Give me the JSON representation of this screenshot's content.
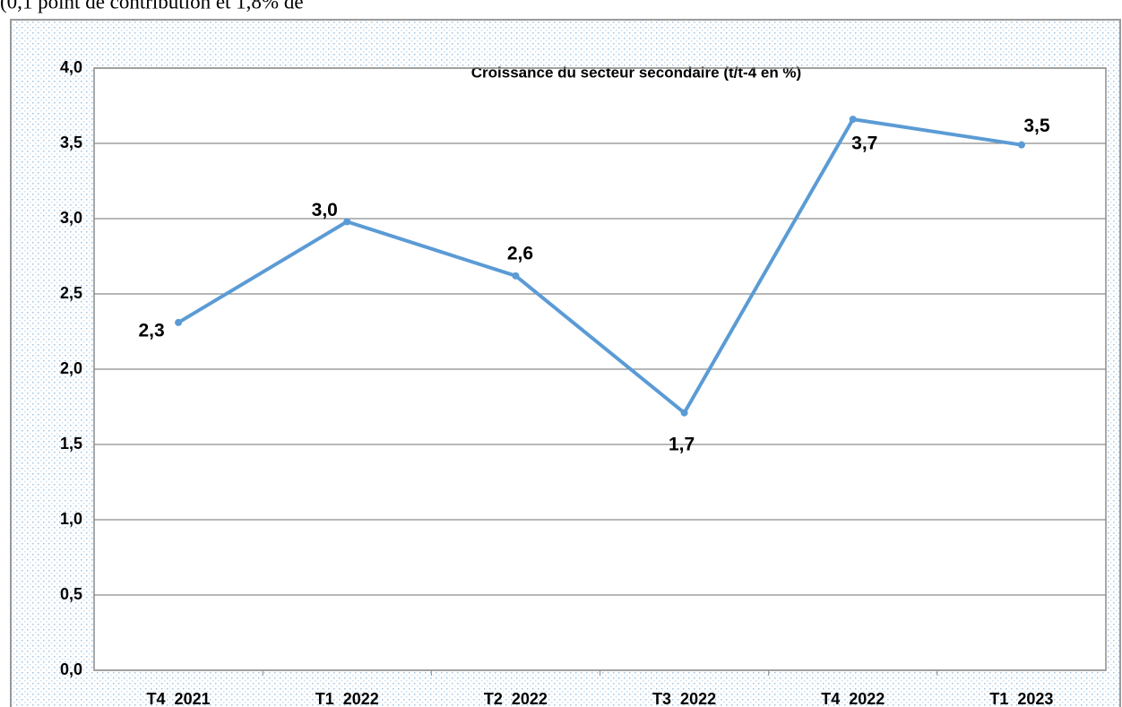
{
  "page_text": "(0,1 point de contribution et 1,8% de",
  "chart_data": {
    "type": "line",
    "title": "Croissance du secteur secondaire (t/t-4 en %)",
    "categories": [
      "T4  2021",
      "T1  2022",
      "T2  2022",
      "T3  2022",
      "T4  2022",
      "T1  2023"
    ],
    "series": [
      {
        "name": "Croissance du secteur secondaire",
        "color": "#5b9bd5",
        "values": [
          2.31,
          2.98,
          2.62,
          1.71,
          3.66,
          3.49
        ],
        "value_labels": [
          "2,3",
          "3,0",
          "2,6",
          "1,7",
          "3,7",
          "3,5"
        ]
      }
    ],
    "ylim": [
      0,
      4
    ],
    "yticks": [
      {
        "value": 0,
        "label": "0,0"
      },
      {
        "value": 0.5,
        "label": "0,5"
      },
      {
        "value": 1,
        "label": "1,0"
      },
      {
        "value": 1.5,
        "label": "1,5"
      },
      {
        "value": 2,
        "label": "2,0"
      },
      {
        "value": 2.5,
        "label": "2,5"
      },
      {
        "value": 3,
        "label": "3,0"
      },
      {
        "value": 3.5,
        "label": "3,5"
      },
      {
        "value": 4,
        "label": "4,0"
      }
    ],
    "grid": true
  }
}
